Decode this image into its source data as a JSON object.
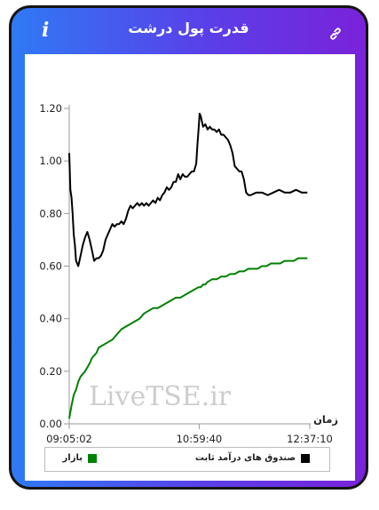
{
  "header": {
    "title": "قدرت پول درشت",
    "info_icon": "info-icon",
    "link_icon": "link-icon"
  },
  "watermark": "LiveTSE.ir",
  "chart_data": {
    "type": "line",
    "xlabel": "زمان",
    "ylabel": "",
    "ylim": [
      0,
      1.2
    ],
    "grid": false,
    "legend_position": "bottom",
    "y_ticks": [
      "0.00",
      "0.20",
      "0.40",
      "0.60",
      "0.80",
      "1.00",
      "1.20"
    ],
    "x_ticks": [
      "09:05:02",
      "10:59:40",
      "12:37:10"
    ],
    "x_tick_positions_minutes": [
      0,
      114.6,
      212.1
    ],
    "x_range_minutes": [
      0,
      212.1
    ],
    "series": [
      {
        "name": "صندوق های درآمد ثابت",
        "color": "#000000",
        "points": [
          [
            0,
            1.03
          ],
          [
            1,
            0.89
          ],
          [
            2,
            0.86
          ],
          [
            3,
            0.8
          ],
          [
            4,
            0.72
          ],
          [
            5,
            0.68
          ],
          [
            6,
            0.62
          ],
          [
            8,
            0.6
          ],
          [
            10,
            0.64
          ],
          [
            12,
            0.68
          ],
          [
            14,
            0.71
          ],
          [
            16,
            0.73
          ],
          [
            18,
            0.7
          ],
          [
            20,
            0.66
          ],
          [
            22,
            0.62
          ],
          [
            24,
            0.63
          ],
          [
            26,
            0.63
          ],
          [
            28,
            0.64
          ],
          [
            30,
            0.66
          ],
          [
            32,
            0.7
          ],
          [
            34,
            0.72
          ],
          [
            36,
            0.74
          ],
          [
            38,
            0.76
          ],
          [
            40,
            0.75
          ],
          [
            42,
            0.76
          ],
          [
            44,
            0.76
          ],
          [
            46,
            0.77
          ],
          [
            48,
            0.76
          ],
          [
            50,
            0.78
          ],
          [
            52,
            0.81
          ],
          [
            54,
            0.83
          ],
          [
            56,
            0.82
          ],
          [
            58,
            0.83
          ],
          [
            60,
            0.84
          ],
          [
            62,
            0.83
          ],
          [
            64,
            0.84
          ],
          [
            66,
            0.83
          ],
          [
            68,
            0.84
          ],
          [
            70,
            0.83
          ],
          [
            72,
            0.84
          ],
          [
            74,
            0.85
          ],
          [
            76,
            0.84
          ],
          [
            78,
            0.86
          ],
          [
            80,
            0.85
          ],
          [
            82,
            0.87
          ],
          [
            84,
            0.88
          ],
          [
            86,
            0.9
          ],
          [
            88,
            0.89
          ],
          [
            90,
            0.9
          ],
          [
            92,
            0.92
          ],
          [
            94,
            0.92
          ],
          [
            96,
            0.95
          ],
          [
            98,
            0.93
          ],
          [
            100,
            0.95
          ],
          [
            102,
            0.94
          ],
          [
            104,
            0.94
          ],
          [
            106,
            0.95
          ],
          [
            108,
            0.96
          ],
          [
            110,
            0.96
          ],
          [
            112,
            0.99
          ],
          [
            113,
            1.06
          ],
          [
            114,
            1.12
          ],
          [
            115,
            1.18
          ],
          [
            116,
            1.17
          ],
          [
            118,
            1.13
          ],
          [
            120,
            1.14
          ],
          [
            122,
            1.12
          ],
          [
            124,
            1.13
          ],
          [
            126,
            1.12
          ],
          [
            128,
            1.12
          ],
          [
            130,
            1.11
          ],
          [
            132,
            1.12
          ],
          [
            134,
            1.1
          ],
          [
            136,
            1.1
          ],
          [
            138,
            1.09
          ],
          [
            140,
            1.08
          ],
          [
            142,
            1.06
          ],
          [
            144,
            1.03
          ],
          [
            146,
            0.98
          ],
          [
            148,
            0.97
          ],
          [
            150,
            0.96
          ],
          [
            152,
            0.96
          ],
          [
            154,
            0.93
          ],
          [
            156,
            0.88
          ],
          [
            158,
            0.87
          ],
          [
            160,
            0.87
          ],
          [
            165,
            0.88
          ],
          [
            170,
            0.88
          ],
          [
            175,
            0.87
          ],
          [
            180,
            0.88
          ],
          [
            185,
            0.89
          ],
          [
            190,
            0.88
          ],
          [
            195,
            0.88
          ],
          [
            200,
            0.89
          ],
          [
            205,
            0.88
          ],
          [
            210,
            0.88
          ]
        ]
      },
      {
        "name": "بازار",
        "color": "#008000",
        "points": [
          [
            0,
            0.02
          ],
          [
            2,
            0.07
          ],
          [
            4,
            0.11
          ],
          [
            6,
            0.13
          ],
          [
            8,
            0.16
          ],
          [
            10,
            0.18
          ],
          [
            14,
            0.2
          ],
          [
            18,
            0.23
          ],
          [
            20,
            0.25
          ],
          [
            24,
            0.27
          ],
          [
            26,
            0.29
          ],
          [
            30,
            0.3
          ],
          [
            34,
            0.31
          ],
          [
            38,
            0.32
          ],
          [
            40,
            0.33
          ],
          [
            44,
            0.35
          ],
          [
            46,
            0.36
          ],
          [
            50,
            0.37
          ],
          [
            54,
            0.38
          ],
          [
            58,
            0.39
          ],
          [
            62,
            0.4
          ],
          [
            66,
            0.42
          ],
          [
            70,
            0.43
          ],
          [
            74,
            0.44
          ],
          [
            78,
            0.44
          ],
          [
            82,
            0.45
          ],
          [
            86,
            0.46
          ],
          [
            90,
            0.47
          ],
          [
            94,
            0.48
          ],
          [
            98,
            0.48
          ],
          [
            102,
            0.49
          ],
          [
            106,
            0.5
          ],
          [
            110,
            0.51
          ],
          [
            114,
            0.52
          ],
          [
            116,
            0.52
          ],
          [
            118,
            0.53
          ],
          [
            120,
            0.53
          ],
          [
            122,
            0.54
          ],
          [
            126,
            0.55
          ],
          [
            130,
            0.55
          ],
          [
            134,
            0.56
          ],
          [
            138,
            0.56
          ],
          [
            142,
            0.57
          ],
          [
            146,
            0.57
          ],
          [
            150,
            0.58
          ],
          [
            154,
            0.58
          ],
          [
            158,
            0.59
          ],
          [
            162,
            0.59
          ],
          [
            166,
            0.59
          ],
          [
            170,
            0.6
          ],
          [
            174,
            0.6
          ],
          [
            178,
            0.61
          ],
          [
            182,
            0.61
          ],
          [
            186,
            0.61
          ],
          [
            190,
            0.62
          ],
          [
            194,
            0.62
          ],
          [
            198,
            0.62
          ],
          [
            202,
            0.63
          ],
          [
            206,
            0.63
          ],
          [
            210,
            0.63
          ]
        ]
      }
    ]
  }
}
